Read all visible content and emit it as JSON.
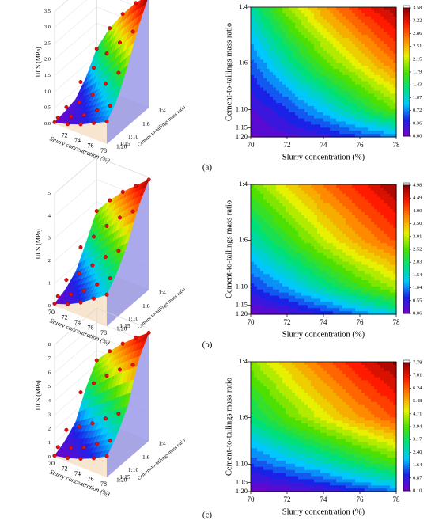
{
  "figure": {
    "panel_labels": [
      "(a)",
      "(b)",
      "(c)"
    ]
  },
  "colormap": [
    "#7a00c8",
    "#1b22e8",
    "#00c8ff",
    "#00e07a",
    "#4ee000",
    "#e6f000",
    "#ff8a00",
    "#ff1a00",
    "#8a0000"
  ],
  "surface_side_color": "#9a9ae8",
  "floor_color": "#f4dcc0",
  "marker_color": "#e01010",
  "chart_data": [
    {
      "type": "surface_3d",
      "panel": "(a)",
      "xlabel": "Slurry concentration (%)",
      "ylabel": "Cement-to-tailings mass ratio",
      "zlabel": "UCS (MPa)",
      "x_ticks": [
        "72",
        "74",
        "76",
        "78"
      ],
      "y_ticks": [
        "1:4",
        "1:6",
        "1:10",
        "1:15",
        "1:20"
      ],
      "z_ticks": [
        "0.0",
        "0.5",
        "1.0",
        "1.5",
        "2.0",
        "2.5",
        "3.0",
        "3.5"
      ],
      "x": [
        70,
        72,
        74,
        76,
        78
      ],
      "y": [
        "1:20",
        "1:15",
        "1:10",
        "1:6",
        "1:4"
      ],
      "z": [
        [
          0.05,
          0.15,
          0.3,
          0.5,
          0.7
        ],
        [
          0.1,
          0.3,
          0.5,
          0.8,
          1.1
        ],
        [
          0.2,
          0.5,
          0.9,
          1.4,
          1.9
        ],
        [
          0.6,
          1.2,
          1.8,
          2.3,
          2.8
        ],
        [
          1.2,
          2.0,
          2.6,
          3.1,
          3.5
        ]
      ]
    },
    {
      "type": "heatmap",
      "panel": "(a)",
      "xlabel": "Slurry concentration (%)",
      "ylabel": "Cement-to-tailings mass ratio",
      "x_ticks": [
        "70",
        "72",
        "74",
        "76",
        "78"
      ],
      "y_ticks": [
        "1:4",
        "1:6",
        "1:10",
        "1:15",
        "1:20"
      ],
      "colorbar_ticks": [
        "3.58",
        "3.22",
        "2.86",
        "2.51",
        "2.15",
        "1.79",
        "1.43",
        "1.07",
        "0.72",
        "0.36",
        "0.00"
      ],
      "zlim": [
        0,
        3.58
      ],
      "x": [
        70,
        72,
        74,
        76,
        78
      ],
      "y": [
        "1:20",
        "1:15",
        "1:10",
        "1:6",
        "1:4"
      ],
      "z": [
        [
          0.05,
          0.15,
          0.3,
          0.5,
          0.7
        ],
        [
          0.1,
          0.3,
          0.5,
          0.8,
          1.1
        ],
        [
          0.2,
          0.5,
          0.9,
          1.4,
          1.9
        ],
        [
          0.6,
          1.2,
          1.8,
          2.3,
          2.8
        ],
        [
          1.2,
          2.0,
          2.6,
          3.1,
          3.5
        ]
      ]
    },
    {
      "type": "surface_3d",
      "panel": "(b)",
      "xlabel": "Slurry concentration (%)",
      "ylabel": "Cement-to-tailings mass ratio",
      "zlabel": "UCS (MPa)",
      "x_ticks": [
        "70",
        "72",
        "74",
        "76",
        "78"
      ],
      "y_ticks": [
        "1:4",
        "1:6",
        "1:10",
        "1:15",
        "1:20"
      ],
      "z_ticks": [
        "0",
        "1",
        "2",
        "3",
        "4",
        "5"
      ],
      "x": [
        70,
        72,
        74,
        76,
        78
      ],
      "y": [
        "1:20",
        "1:15",
        "1:10",
        "1:6",
        "1:4"
      ],
      "z": [
        [
          0.1,
          0.3,
          0.6,
          1.0,
          1.4
        ],
        [
          0.3,
          0.6,
          1.0,
          1.5,
          2.0
        ],
        [
          0.7,
          1.2,
          1.8,
          2.4,
          2.9
        ],
        [
          1.6,
          2.3,
          3.0,
          3.6,
          4.1
        ],
        [
          2.6,
          3.3,
          3.9,
          4.4,
          4.9
        ]
      ]
    },
    {
      "type": "heatmap",
      "panel": "(b)",
      "xlabel": "Slurry concentration (%)",
      "ylabel": "Cement-to-tailings mass ratio",
      "x_ticks": [
        "70",
        "72",
        "74",
        "76",
        "78"
      ],
      "y_ticks": [
        "1:4",
        "1:6",
        "1:10",
        "1:15",
        "1:20"
      ],
      "colorbar_ticks": [
        "4.98",
        "4.49",
        "4.00",
        "3.50",
        "3.01",
        "2.52",
        "2.03",
        "1.54",
        "1.04",
        "0.55",
        "0.06"
      ],
      "zlim": [
        0.06,
        4.98
      ],
      "x": [
        70,
        72,
        74,
        76,
        78
      ],
      "y": [
        "1:20",
        "1:15",
        "1:10",
        "1:6",
        "1:4"
      ],
      "z": [
        [
          0.1,
          0.3,
          0.6,
          1.0,
          1.4
        ],
        [
          0.3,
          0.6,
          1.0,
          1.5,
          2.0
        ],
        [
          0.7,
          1.2,
          1.8,
          2.4,
          2.9
        ],
        [
          1.6,
          2.3,
          3.0,
          3.6,
          4.1
        ],
        [
          2.6,
          3.3,
          3.9,
          4.4,
          4.9
        ]
      ]
    },
    {
      "type": "surface_3d",
      "panel": "(c)",
      "xlabel": "Slurry concentration (%)",
      "ylabel": "Cement-to-tailings mass ratio",
      "zlabel": "UCS (MPa)",
      "x_ticks": [
        "70",
        "72",
        "74",
        "76",
        "78"
      ],
      "y_ticks": [
        "1:4",
        "1:6",
        "1:10",
        "1:15",
        "1:20"
      ],
      "z_ticks": [
        "0",
        "1",
        "2",
        "3",
        "4",
        "5",
        "6",
        "7",
        "8"
      ],
      "x": [
        70,
        72,
        74,
        76,
        78
      ],
      "y": [
        "1:20",
        "1:15",
        "1:10",
        "1:6",
        "1:4"
      ],
      "z": [
        [
          0.1,
          0.3,
          0.6,
          1.0,
          1.5
        ],
        [
          0.5,
          0.8,
          1.2,
          1.8,
          2.4
        ],
        [
          1.2,
          1.8,
          2.4,
          3.1,
          3.8
        ],
        [
          3.0,
          4.0,
          4.9,
          5.7,
          6.4
        ],
        [
          4.3,
          5.3,
          6.2,
          7.0,
          7.7
        ]
      ]
    },
    {
      "type": "heatmap",
      "panel": "(c)",
      "xlabel": "Slurry concentration (%)",
      "ylabel": "Cement-to-tailings mass ratio",
      "x_ticks": [
        "70",
        "72",
        "74",
        "76",
        "78"
      ],
      "y_ticks": [
        "1:4",
        "1:6",
        "1:10",
        "1:15",
        "1:20"
      ],
      "colorbar_ticks": [
        "7.78",
        "7.01",
        "6.24",
        "5.48",
        "4.71",
        "3.94",
        "3.17",
        "2.40",
        "1.64",
        "0.87",
        "0.10"
      ],
      "zlim": [
        0.1,
        7.78
      ],
      "x": [
        70,
        72,
        74,
        76,
        78
      ],
      "y": [
        "1:20",
        "1:15",
        "1:10",
        "1:6",
        "1:4"
      ],
      "z": [
        [
          0.1,
          0.3,
          0.6,
          1.0,
          1.5
        ],
        [
          0.5,
          0.8,
          1.2,
          1.8,
          2.4
        ],
        [
          1.2,
          1.8,
          2.4,
          3.1,
          3.8
        ],
        [
          3.0,
          4.0,
          4.9,
          5.7,
          6.4
        ],
        [
          4.3,
          5.3,
          6.2,
          7.0,
          7.7
        ]
      ]
    }
  ]
}
